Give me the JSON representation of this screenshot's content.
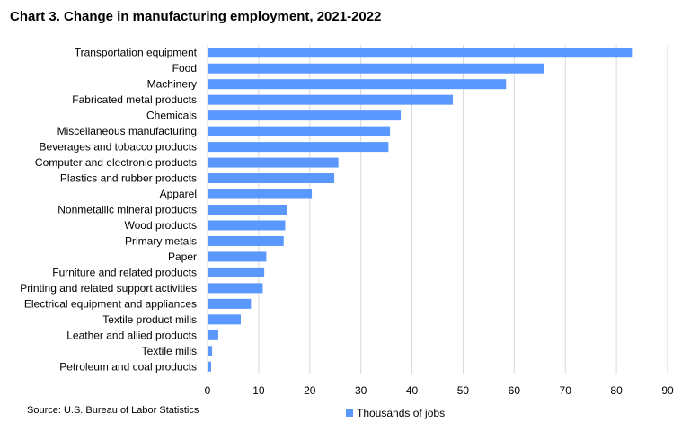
{
  "chart_data": {
    "type": "bar",
    "orientation": "horizontal",
    "title": "Chart 3. Change in manufacturing employment, 2021-2022",
    "categories": [
      "Transportation equipment",
      "Food",
      "Machinery",
      "Fabricated metal products",
      "Chemicals",
      "Miscellaneous manufacturing",
      "Beverages and tobacco products",
      "Computer and electronic products",
      "Plastics and rubber products",
      "Apparel",
      "Nonmetallic mineral products",
      "Wood products",
      "Primary metals",
      "Paper",
      "Furniture and related products",
      "Printing and related support activities",
      "Electrical equipment and appliances",
      "Textile product mills",
      "Leather and allied products",
      "Textile mills",
      "Petroleum and coal products"
    ],
    "series": [
      {
        "name": "Thousands of jobs",
        "color": "#5b98fd",
        "values": [
          83.2,
          65.8,
          58.4,
          48.0,
          37.8,
          35.7,
          35.4,
          25.6,
          24.8,
          20.4,
          15.6,
          15.2,
          14.9,
          11.5,
          11.1,
          10.8,
          8.5,
          6.5,
          2.1,
          0.9,
          0.7
        ]
      }
    ],
    "xlim": [
      0,
      90
    ],
    "xticks": [
      0,
      10,
      20,
      30,
      40,
      50,
      60,
      70,
      80,
      90
    ],
    "grid": true,
    "legend": "bottom-center",
    "source": "Source: U.S. Bureau of Labor Statistics"
  }
}
